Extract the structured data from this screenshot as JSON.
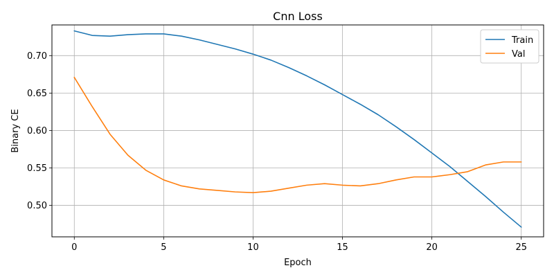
{
  "chart_data": {
    "type": "line",
    "title": "Cnn Loss",
    "xlabel": "Epoch",
    "ylabel": "Binary CE",
    "xlim": [
      -1.25,
      26.25
    ],
    "ylim": [
      0.458,
      0.741
    ],
    "xticks": [
      0,
      5,
      10,
      15,
      20,
      25
    ],
    "yticks": [
      0.5,
      0.55,
      0.6,
      0.65,
      0.7
    ],
    "grid": true,
    "legend_position": "top-right",
    "x": [
      0,
      1,
      2,
      3,
      4,
      5,
      6,
      7,
      8,
      9,
      10,
      11,
      12,
      13,
      14,
      15,
      16,
      17,
      18,
      19,
      20,
      21,
      22,
      23,
      24,
      25
    ],
    "series": [
      {
        "name": "Train",
        "color": "#1f77b4",
        "values": [
          0.733,
          0.727,
          0.726,
          0.728,
          0.729,
          0.729,
          0.726,
          0.721,
          0.715,
          0.709,
          0.702,
          0.694,
          0.684,
          0.673,
          0.661,
          0.648,
          0.635,
          0.621,
          0.605,
          0.588,
          0.57,
          0.552,
          0.532,
          0.512,
          0.491,
          0.471
        ]
      },
      {
        "name": "Val",
        "color": "#ff7f0e",
        "values": [
          0.671,
          0.632,
          0.595,
          0.567,
          0.547,
          0.534,
          0.526,
          0.522,
          0.52,
          0.518,
          0.517,
          0.519,
          0.523,
          0.527,
          0.529,
          0.527,
          0.526,
          0.529,
          0.534,
          0.538,
          0.538,
          0.541,
          0.545,
          0.554,
          0.558,
          0.558
        ]
      }
    ]
  }
}
